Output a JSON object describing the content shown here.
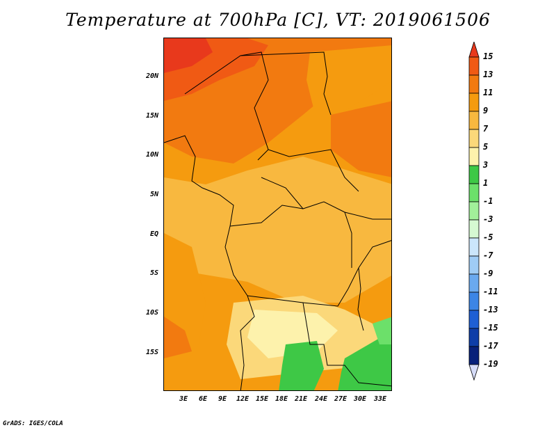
{
  "title": "Temperature at 700hPa [C], VT: 2019061506",
  "credit": "GrADS: IGES/COLA",
  "axes": {
    "lat_labels": [
      "20N",
      "15N",
      "10N",
      "5N",
      "EQ",
      "5S",
      "10S",
      "15S"
    ],
    "lon_labels": [
      "3E",
      "6E",
      "9E",
      "12E",
      "15E",
      "18E",
      "21E",
      "24E",
      "27E",
      "30E",
      "33E"
    ]
  },
  "colorbar": {
    "labels": [
      "15",
      "13",
      "11",
      "9",
      "7",
      "5",
      "3",
      "1",
      "-1",
      "-3",
      "-5",
      "-7",
      "-9",
      "-11",
      "-13",
      "-15",
      "-17",
      "-19"
    ],
    "colors": [
      "#e8391c",
      "#f05a14",
      "#f27a10",
      "#f59b0f",
      "#f8b83f",
      "#fbd87a",
      "#fdf2ac",
      "#3ec846",
      "#6ce06a",
      "#a2f09a",
      "#d6f9d2",
      "#cbe6fb",
      "#9fccf5",
      "#6aa9ef",
      "#3c85e6",
      "#1e5fd4",
      "#0e3ea8",
      "#08217a",
      "#d6dcf8"
    ]
  }
}
